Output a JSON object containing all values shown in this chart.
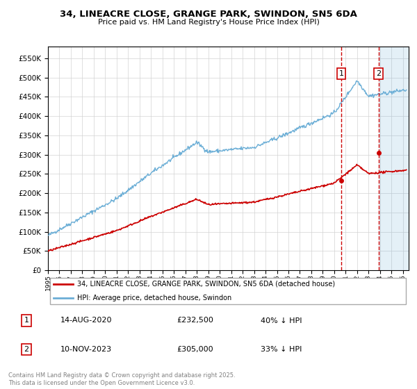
{
  "title_line1": "34, LINEACRE CLOSE, GRANGE PARK, SWINDON, SN5 6DA",
  "title_line2": "Price paid vs. HM Land Registry's House Price Index (HPI)",
  "legend_label_red": "34, LINEACRE CLOSE, GRANGE PARK, SWINDON, SN5 6DA (detached house)",
  "legend_label_blue": "HPI: Average price, detached house, Swindon",
  "transaction1_date": "14-AUG-2020",
  "transaction1_price": "£232,500",
  "transaction1_hpi": "40% ↓ HPI",
  "transaction1_year": 2020.62,
  "transaction1_value": 232500,
  "transaction2_date": "10-NOV-2023",
  "transaction2_price": "£305,000",
  "transaction2_hpi": "33% ↓ HPI",
  "transaction2_year": 2023.87,
  "transaction2_value": 305000,
  "copyright_text": "Contains HM Land Registry data © Crown copyright and database right 2025.\nThis data is licensed under the Open Government Licence v3.0.",
  "hpi_color": "#6baed6",
  "price_color": "#cc0000",
  "ylim": [
    0,
    580000
  ],
  "xlim_start": 1995.0,
  "xlim_end": 2026.5
}
